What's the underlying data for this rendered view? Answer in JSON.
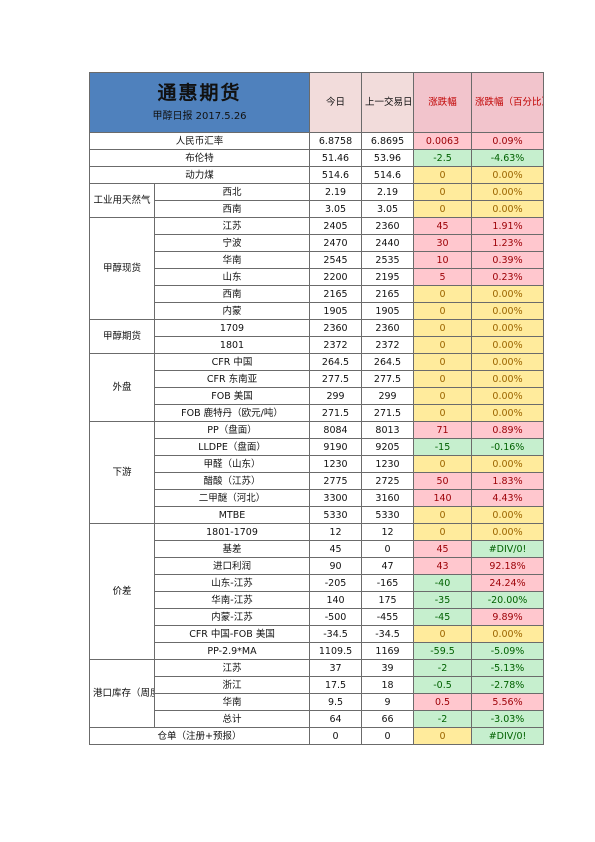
{
  "header": {
    "title": "通惠期货",
    "subtitle": "甲醇日报 2017.5.26",
    "col_today": "今日",
    "col_prev": "上一交易日",
    "col_change": "涨跌幅",
    "col_pct": "涨跌幅（百分比）"
  },
  "groups": [
    {
      "name": "",
      "rows": [
        {
          "label": "人民币汇率",
          "today": "6.8758",
          "prev": "6.8695",
          "change": "0.0063",
          "pct": "0.09%",
          "dir": "up"
        }
      ]
    },
    {
      "name": "",
      "rows": [
        {
          "label": "布伦特",
          "today": "51.46",
          "prev": "53.96",
          "change": "-2.5",
          "pct": "-4.63%",
          "dir": "down"
        }
      ]
    },
    {
      "name": "",
      "rows": [
        {
          "label": "动力煤",
          "today": "514.6",
          "prev": "514.6",
          "change": "0",
          "pct": "0.00%",
          "dir": "flat"
        }
      ]
    },
    {
      "name": "工业用天然气",
      "rows": [
        {
          "label": "西北",
          "today": "2.19",
          "prev": "2.19",
          "change": "0",
          "pct": "0.00%",
          "dir": "flat"
        },
        {
          "label": "西南",
          "today": "3.05",
          "prev": "3.05",
          "change": "0",
          "pct": "0.00%",
          "dir": "flat"
        }
      ]
    },
    {
      "name": "甲醇现货",
      "rows": [
        {
          "label": "江苏",
          "today": "2405",
          "prev": "2360",
          "change": "45",
          "pct": "1.91%",
          "dir": "up"
        },
        {
          "label": "宁波",
          "today": "2470",
          "prev": "2440",
          "change": "30",
          "pct": "1.23%",
          "dir": "up"
        },
        {
          "label": "华南",
          "today": "2545",
          "prev": "2535",
          "change": "10",
          "pct": "0.39%",
          "dir": "up"
        },
        {
          "label": "山东",
          "today": "2200",
          "prev": "2195",
          "change": "5",
          "pct": "0.23%",
          "dir": "up"
        },
        {
          "label": "西南",
          "today": "2165",
          "prev": "2165",
          "change": "0",
          "pct": "0.00%",
          "dir": "flat"
        },
        {
          "label": "内蒙",
          "today": "1905",
          "prev": "1905",
          "change": "0",
          "pct": "0.00%",
          "dir": "flat"
        }
      ]
    },
    {
      "name": "甲醇期货",
      "rows": [
        {
          "label": "1709",
          "today": "2360",
          "prev": "2360",
          "change": "0",
          "pct": "0.00%",
          "dir": "flat"
        },
        {
          "label": "1801",
          "today": "2372",
          "prev": "2372",
          "change": "0",
          "pct": "0.00%",
          "dir": "flat"
        }
      ]
    },
    {
      "name": "外盘",
      "rows": [
        {
          "label": "CFR 中国",
          "today": "264.5",
          "prev": "264.5",
          "change": "0",
          "pct": "0.00%",
          "dir": "flat"
        },
        {
          "label": "CFR 东南亚",
          "today": "277.5",
          "prev": "277.5",
          "change": "0",
          "pct": "0.00%",
          "dir": "flat"
        },
        {
          "label": "FOB 美国",
          "today": "299",
          "prev": "299",
          "change": "0",
          "pct": "0.00%",
          "dir": "flat"
        },
        {
          "label": "FOB 鹿特丹（欧元/吨）",
          "today": "271.5",
          "prev": "271.5",
          "change": "0",
          "pct": "0.00%",
          "dir": "flat"
        }
      ]
    },
    {
      "name": "下游",
      "rows": [
        {
          "label": "PP（盘面）",
          "today": "8084",
          "prev": "8013",
          "change": "71",
          "pct": "0.89%",
          "dir": "up"
        },
        {
          "label": "LLDPE（盘面）",
          "today": "9190",
          "prev": "9205",
          "change": "-15",
          "pct": "-0.16%",
          "dir": "down"
        },
        {
          "label": "甲醛（山东）",
          "today": "1230",
          "prev": "1230",
          "change": "0",
          "pct": "0.00%",
          "dir": "flat"
        },
        {
          "label": "醋酸（江苏）",
          "today": "2775",
          "prev": "2725",
          "change": "50",
          "pct": "1.83%",
          "dir": "up"
        },
        {
          "label": "二甲醚（河北）",
          "today": "3300",
          "prev": "3160",
          "change": "140",
          "pct": "4.43%",
          "dir": "up"
        },
        {
          "label": "MTBE",
          "today": "5330",
          "prev": "5330",
          "change": "0",
          "pct": "0.00%",
          "dir": "flat"
        }
      ]
    },
    {
      "name": "价差",
      "rows": [
        {
          "label": "1801-1709",
          "today": "12",
          "prev": "12",
          "change": "0",
          "pct": "0.00%",
          "dir": "flat"
        },
        {
          "label": "基差",
          "today": "45",
          "prev": "0",
          "change": "45",
          "pct": "#DIV/0!",
          "dir": "up",
          "pct_dir": "down"
        },
        {
          "label": "进口利润",
          "today": "90",
          "prev": "47",
          "change": "43",
          "pct": "92.18%",
          "dir": "up"
        },
        {
          "label": "山东-江苏",
          "today": "-205",
          "prev": "-165",
          "change": "-40",
          "pct": "24.24%",
          "dir": "down",
          "pct_dir": "up"
        },
        {
          "label": "华南-江苏",
          "today": "140",
          "prev": "175",
          "change": "-35",
          "pct": "-20.00%",
          "dir": "down"
        },
        {
          "label": "内蒙-江苏",
          "today": "-500",
          "prev": "-455",
          "change": "-45",
          "pct": "9.89%",
          "dir": "down",
          "pct_dir": "up"
        },
        {
          "label": "CFR 中国-FOB 美国",
          "today": "-34.5",
          "prev": "-34.5",
          "change": "0",
          "pct": "0.00%",
          "dir": "flat"
        },
        {
          "label": "PP-2.9*MA",
          "today": "1109.5",
          "prev": "1169",
          "change": "-59.5",
          "pct": "-5.09%",
          "dir": "down"
        }
      ]
    },
    {
      "name": "港口库存（周度）",
      "rows": [
        {
          "label": "江苏",
          "today": "37",
          "prev": "39",
          "change": "-2",
          "pct": "-5.13%",
          "dir": "down"
        },
        {
          "label": "浙江",
          "today": "17.5",
          "prev": "18",
          "change": "-0.5",
          "pct": "-2.78%",
          "dir": "down"
        },
        {
          "label": "华南",
          "today": "9.5",
          "prev": "9",
          "change": "0.5",
          "pct": "5.56%",
          "dir": "up"
        },
        {
          "label": "总计",
          "today": "64",
          "prev": "66",
          "change": "-2",
          "pct": "-3.03%",
          "dir": "down"
        }
      ]
    },
    {
      "name": "",
      "rows": [
        {
          "label": "仓单（注册+预报）",
          "today": "0",
          "prev": "0",
          "change": "0",
          "pct": "#DIV/0!",
          "dir": "flat",
          "pct_dir": "down"
        }
      ]
    }
  ]
}
